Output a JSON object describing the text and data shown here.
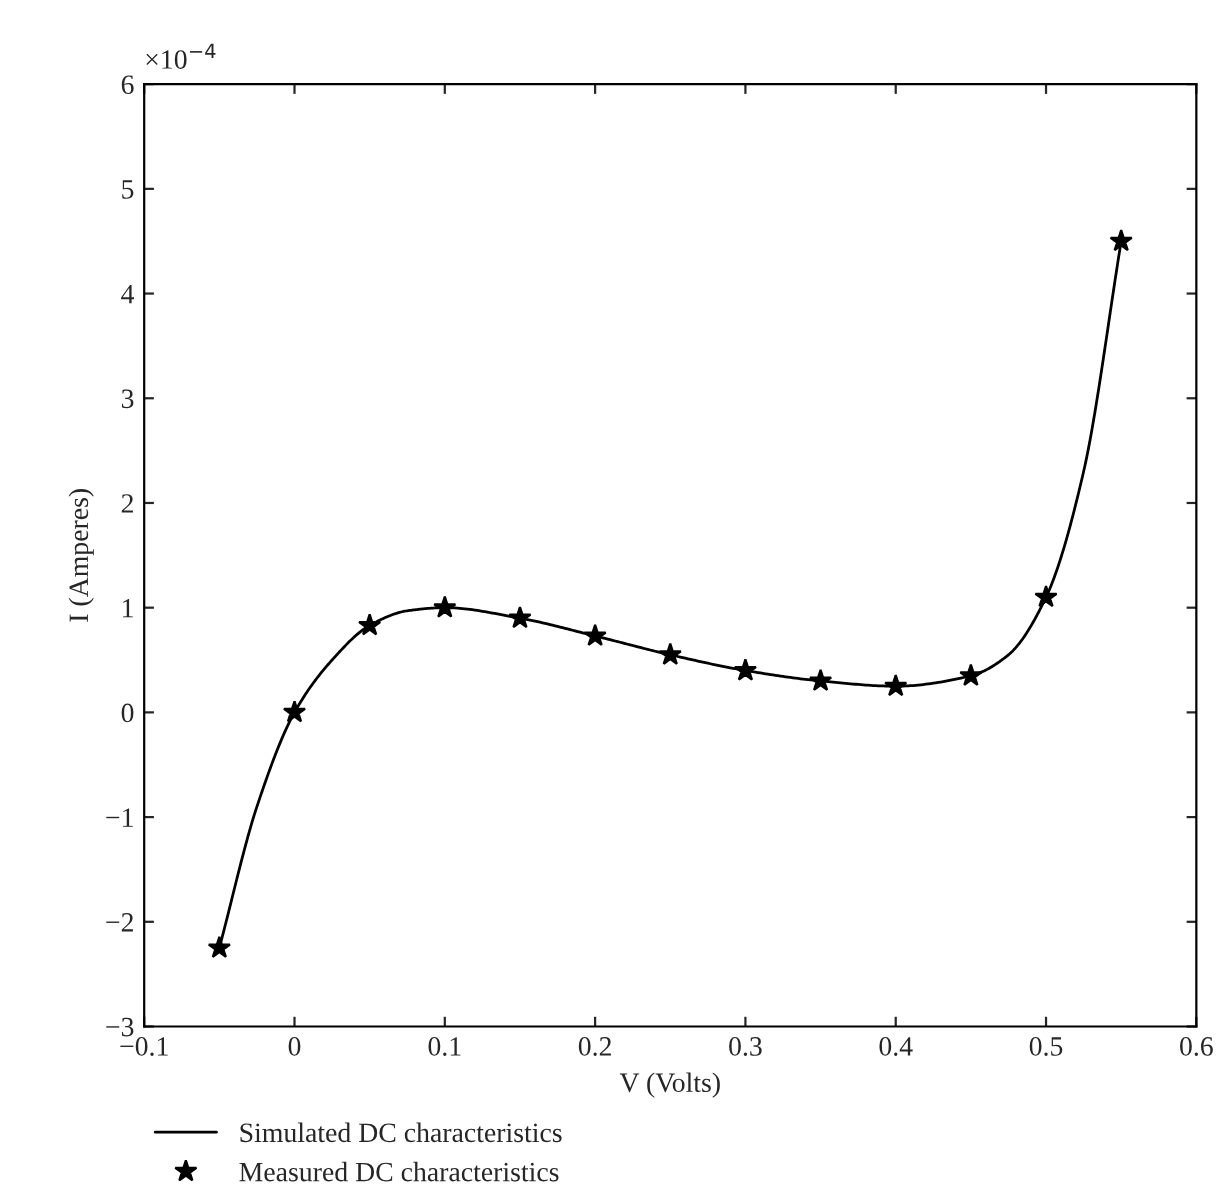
{
  "chart_data": {
    "type": "line",
    "xlabel": "V (Volts)",
    "ylabel": "I (Amperes)",
    "annotations": [
      "×10$^{−4}$"
    ],
    "series": [
      {
        "name": "Simulated DC characteristics",
        "color": "#000000",
        "marker": "none",
        "line_style": "solid",
        "x": [
          -0.05,
          -0.025,
          0,
          0.025,
          0.05,
          0.075,
          0.1,
          0.15,
          0.2,
          0.25,
          0.3,
          0.35,
          0.4,
          0.45,
          0.475,
          0.5,
          0.525,
          0.55
        ],
        "values": [
          -2.25,
          -0.9,
          0,
          0.5,
          0.83,
          0.97,
          1.0,
          0.9,
          0.73,
          0.55,
          0.4,
          0.3,
          0.25,
          0.35,
          0.55,
          1.1,
          2.3,
          4.5
        ]
      },
      {
        "name": "Measured DC characteristics",
        "type": "scatter",
        "color": "#000000",
        "marker": "star",
        "x": [
          -0.05,
          0,
          0.05,
          0.1,
          0.15,
          0.2,
          0.25,
          0.3,
          0.35,
          0.4,
          0.45,
          0.5,
          0.55
        ],
        "values": [
          -2.25,
          0,
          0.83,
          1.0,
          0.9,
          0.73,
          0.55,
          0.4,
          0.3,
          0.25,
          0.35,
          1.1,
          4.5
        ]
      }
    ],
    "xlim": [
      -0.1,
      0.6
    ],
    "xticks": [
      {
        "value": -0.1,
        "label": "−0.1"
      },
      0,
      0.1,
      0.2,
      0.3,
      0.4,
      0.5,
      0.6
    ],
    "ylim": [
      -3,
      6
    ],
    "yticks": [
      {
        "value": -3,
        "label": "−3"
      },
      {
        "value": -2,
        "label": "−2"
      },
      {
        "value": -1,
        "label": "−1"
      },
      0,
      1,
      2,
      3,
      4,
      5,
      6
    ],
    "grid": false,
    "legend": "bottom"
  }
}
